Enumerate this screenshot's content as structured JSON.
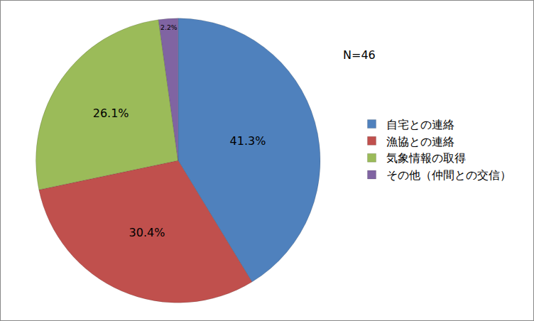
{
  "chart_data": {
    "type": "pie",
    "categories": [
      "自宅との連絡",
      "漁協との連絡",
      "気象情報の取得",
      "その他（仲間との交信）"
    ],
    "values": [
      41.3,
      30.4,
      26.1,
      2.2
    ],
    "value_labels": [
      "41.3%",
      "30.4%",
      "26.1%",
      "2.2%"
    ],
    "colors": [
      "#4f81bd",
      "#c0504d",
      "#9bbb59",
      "#8064a2"
    ],
    "data_labels": true,
    "legend": "right",
    "annotations": [
      "N=46"
    ]
  }
}
